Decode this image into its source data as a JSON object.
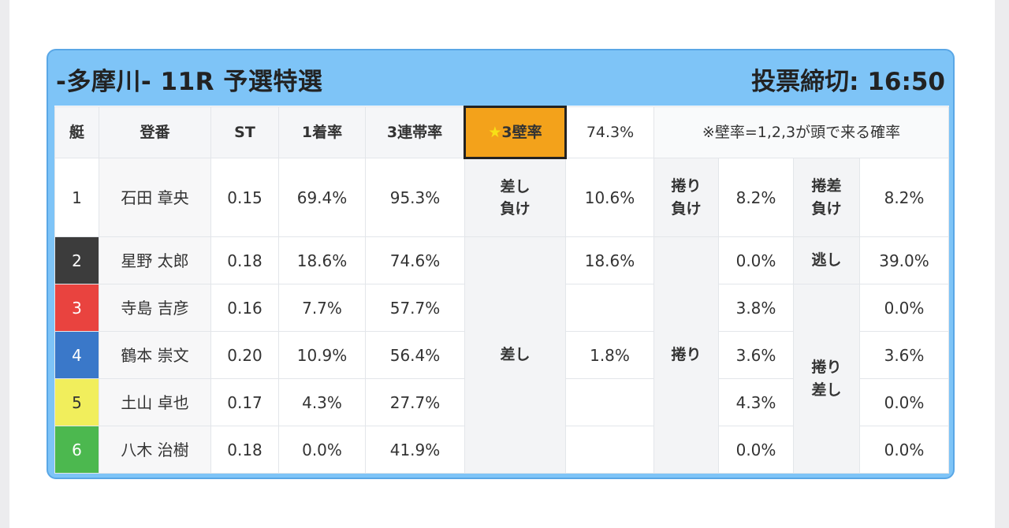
{
  "header": {
    "title": "-多摩川- 11R 予選特選",
    "deadline": "投票締切: 16:50"
  },
  "table": {
    "headers": {
      "lane": "艇",
      "name": "登番",
      "st": "ST",
      "first_rate": "1着率",
      "top3_rate": "3連帯率",
      "kabe_label": "3壁率",
      "kabe_value": "74.3%",
      "note": "※壁率=1,2,3が頭で来る確率"
    },
    "rows": [
      {
        "lane": "1",
        "name": "石田 章央",
        "st": "0.15",
        "first": "69.4%",
        "top3": "95.3%"
      },
      {
        "lane": "2",
        "name": "星野 太郎",
        "st": "0.18",
        "first": "18.6%",
        "top3": "74.6%"
      },
      {
        "lane": "3",
        "name": "寺島 吉彦",
        "st": "0.16",
        "first": "7.7%",
        "top3": "57.7%"
      },
      {
        "lane": "4",
        "name": "鶴本 崇文",
        "st": "0.20",
        "first": "10.9%",
        "top3": "56.4%"
      },
      {
        "lane": "5",
        "name": "土山 卓也",
        "st": "0.17",
        "first": "4.3%",
        "top3": "27.7%"
      },
      {
        "lane": "6",
        "name": "八木 治樹",
        "st": "0.18",
        "first": "0.0%",
        "top3": "41.9%"
      }
    ],
    "patterns": {
      "sashi_make_l1": "差し",
      "sashi_make_l2": "負け",
      "sashi_make_value": "10.6%",
      "makuri_make_l1": "捲り",
      "makuri_make_l2": "負け",
      "makuri_make_value": "8.2%",
      "makurisashi_make_l1": "捲差",
      "makurisashi_make_l2": "負け",
      "makurisashi_make_value": "8.2%",
      "sashi": "差し",
      "sashi_values": [
        "18.6%",
        "",
        "1.8%",
        "",
        ""
      ],
      "makuri": "捲り",
      "makuri_values": [
        "0.0%",
        "3.8%",
        "3.6%",
        "4.3%",
        "0.0%"
      ],
      "nige": "逃し",
      "nige_value": "39.0%",
      "makurisashi_l1": "捲り",
      "makurisashi_l2": "差し",
      "makurisashi_values": [
        "0.0%",
        "3.6%",
        "0.0%",
        "0.0%"
      ]
    }
  }
}
